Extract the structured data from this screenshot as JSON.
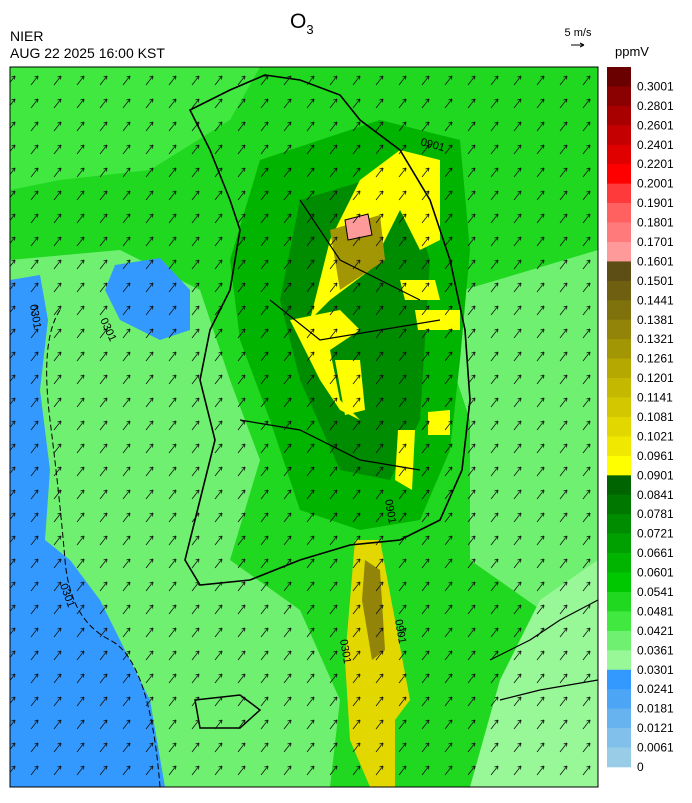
{
  "header": {
    "agency": "NIER",
    "datetime": "AUG 22 2025 16:00 KST",
    "title": {
      "text": "O",
      "subscript": "3"
    },
    "wind_scale": "5 m/s"
  },
  "map": {
    "contour_labels": [
      "0901",
      "0301",
      "0301",
      "0901",
      "0301",
      "0901",
      "0301"
    ]
  },
  "colorbar": {
    "unit": "ppmV",
    "levels": [
      {
        "label": "0.3001",
        "color": "#6b0000"
      },
      {
        "label": "0.2801",
        "color": "#8b0000"
      },
      {
        "label": "0.2601",
        "color": "#a80000"
      },
      {
        "label": "0.2401",
        "color": "#c40000"
      },
      {
        "label": "0.2201",
        "color": "#e00000"
      },
      {
        "label": "0.2001",
        "color": "#ff0000"
      },
      {
        "label": "0.1901",
        "color": "#ff3a3a"
      },
      {
        "label": "0.1801",
        "color": "#ff6060"
      },
      {
        "label": "0.1701",
        "color": "#ff7b7b"
      },
      {
        "label": "0.1601",
        "color": "#ff9a9a"
      },
      {
        "label": "0.1501",
        "color": "#5c4e14"
      },
      {
        "label": "0.1441",
        "color": "#6e6010"
      },
      {
        "label": "0.1381",
        "color": "#7f720c"
      },
      {
        "label": "0.1321",
        "color": "#918408"
      },
      {
        "label": "0.1261",
        "color": "#a39604"
      },
      {
        "label": "0.1201",
        "color": "#b5a800"
      },
      {
        "label": "0.1141",
        "color": "#c4b800"
      },
      {
        "label": "0.1081",
        "color": "#d3c800"
      },
      {
        "label": "0.1021",
        "color": "#e2d800"
      },
      {
        "label": "0.0961",
        "color": "#f0e800"
      },
      {
        "label": "0.0901",
        "color": "#ffff00"
      },
      {
        "label": "0.0841",
        "color": "#006400"
      },
      {
        "label": "0.0781",
        "color": "#007800"
      },
      {
        "label": "0.0721",
        "color": "#008c00"
      },
      {
        "label": "0.0661",
        "color": "#00a000"
      },
      {
        "label": "0.0601",
        "color": "#00b400"
      },
      {
        "label": "0.0541",
        "color": "#00c800"
      },
      {
        "label": "0.0481",
        "color": "#20d820"
      },
      {
        "label": "0.0421",
        "color": "#40e840"
      },
      {
        "label": "0.0361",
        "color": "#70f070"
      },
      {
        "label": "0.0301",
        "color": "#98f898"
      },
      {
        "label": "0.0241",
        "color": "#3399ff"
      },
      {
        "label": "0.0181",
        "color": "#4da6f5"
      },
      {
        "label": "0.0121",
        "color": "#66b3ef"
      },
      {
        "label": "0.0061",
        "color": "#80c0ea"
      },
      {
        "label": "0",
        "color": "#99cce6"
      }
    ]
  }
}
